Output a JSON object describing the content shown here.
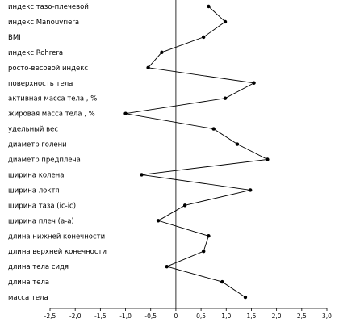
{
  "chart_data": {
    "type": "line",
    "orientation": "horizontal",
    "categories": [
      "индекс тазо-плечевой",
      "индекс Manouvriera",
      "BMI",
      "индекс Rohrera",
      "росто-весовой индекс",
      "поверхность тела",
      "активная масса тела , %",
      "жировая масса тела , %",
      "удельный вес",
      "диаметр голени",
      "диаметр предплеча",
      "ширина колена",
      "ширина локтя",
      "ширина таза (ic-ic)",
      "ширина плеч (a-a)",
      "длина нижней конечности",
      "длина верхней конечности",
      "длина тела сидя",
      "длина тела",
      "масса тела"
    ],
    "values": [
      0.65,
      0.98,
      0.55,
      -0.28,
      -0.55,
      1.55,
      0.98,
      -1.0,
      0.75,
      1.22,
      1.82,
      -0.68,
      1.48,
      0.18,
      -0.35,
      0.65,
      0.55,
      -0.18,
      0.92,
      1.38
    ],
    "xlim": [
      -2.5,
      3.0
    ],
    "xticks": [
      "-2,5",
      "-2,0",
      "-1,5",
      "-1,0",
      "-0,5",
      "0",
      "0,5",
      "1,0",
      "1,5",
      "2,0",
      "2,5",
      "3,0"
    ],
    "xtick_values": [
      -2.5,
      -2.0,
      -1.5,
      -1.0,
      -0.5,
      0,
      0.5,
      1.0,
      1.5,
      2.0,
      2.5,
      3.0
    ],
    "grid": false,
    "reference_line_x": 0,
    "line_color": "#000000",
    "marker_color": "#000000"
  }
}
